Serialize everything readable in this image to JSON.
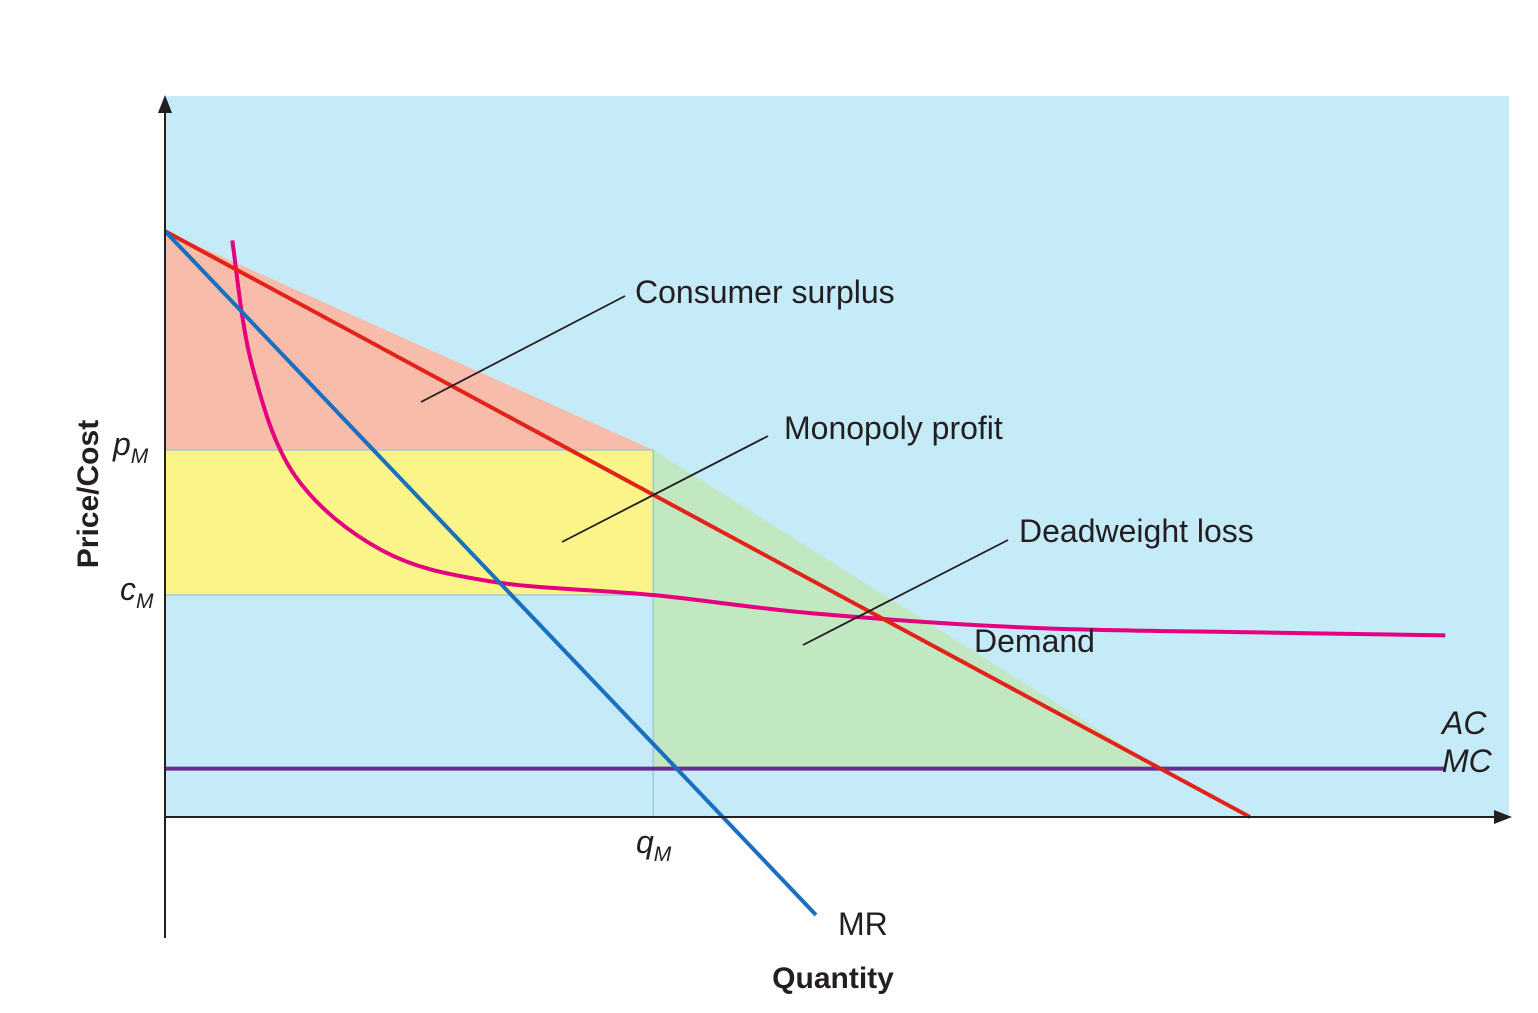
{
  "chart_data": {
    "type": "area",
    "xlabel": "Quantity",
    "ylabel": "Price/Cost",
    "x_ticks": [
      {
        "label": "q",
        "subscript": "M",
        "x": 4.5
      }
    ],
    "y_ticks": [
      {
        "label": "p",
        "subscript": "M",
        "y": 5.92
      },
      {
        "label": "c",
        "subscript": "M",
        "y": 3.58
      }
    ],
    "series": [
      {
        "name": "Demand",
        "type": "line",
        "color": "#e2231a",
        "points": [
          [
            0,
            9.45
          ],
          [
            10,
            0
          ]
        ]
      },
      {
        "name": "MR",
        "type": "line",
        "color": "#1a6fbe",
        "points": [
          [
            0,
            9.45
          ],
          [
            6.0,
            -1.58
          ]
        ]
      },
      {
        "name": "AC",
        "type": "curve",
        "color": "#e5007e",
        "points": [
          [
            0.62,
            9.3
          ],
          [
            0.8,
            7.3
          ],
          [
            1.2,
            5.5
          ],
          [
            2,
            4.3
          ],
          [
            3,
            3.8
          ],
          [
            4.5,
            3.58
          ],
          [
            6,
            3.28
          ],
          [
            8,
            3.05
          ],
          [
            10,
            2.98
          ],
          [
            11.8,
            2.93
          ]
        ]
      },
      {
        "name": "MC",
        "type": "line",
        "color": "#6b2c91",
        "points": [
          [
            0,
            0.78
          ],
          [
            11.8,
            0.78
          ]
        ]
      }
    ],
    "regions": [
      {
        "name": "Consumer surplus",
        "color": "#f8bcaa"
      },
      {
        "name": "Monopoly profit",
        "color": "#fbf589"
      },
      {
        "name": "Deadweight loss",
        "color": "#c2e8c2"
      }
    ],
    "background_color": "#c5eaf8",
    "xlim": [
      0,
      12.4
    ],
    "ylim": [
      -1.6,
      11.2
    ],
    "grid": false
  },
  "annotations": {
    "consumer_surplus": "Consumer surplus",
    "monopoly_profit": "Monopoly profit",
    "deadweight_loss": "Deadweight loss",
    "demand": "Demand",
    "mr": "MR",
    "ac": "AC",
    "mc": "MC"
  }
}
